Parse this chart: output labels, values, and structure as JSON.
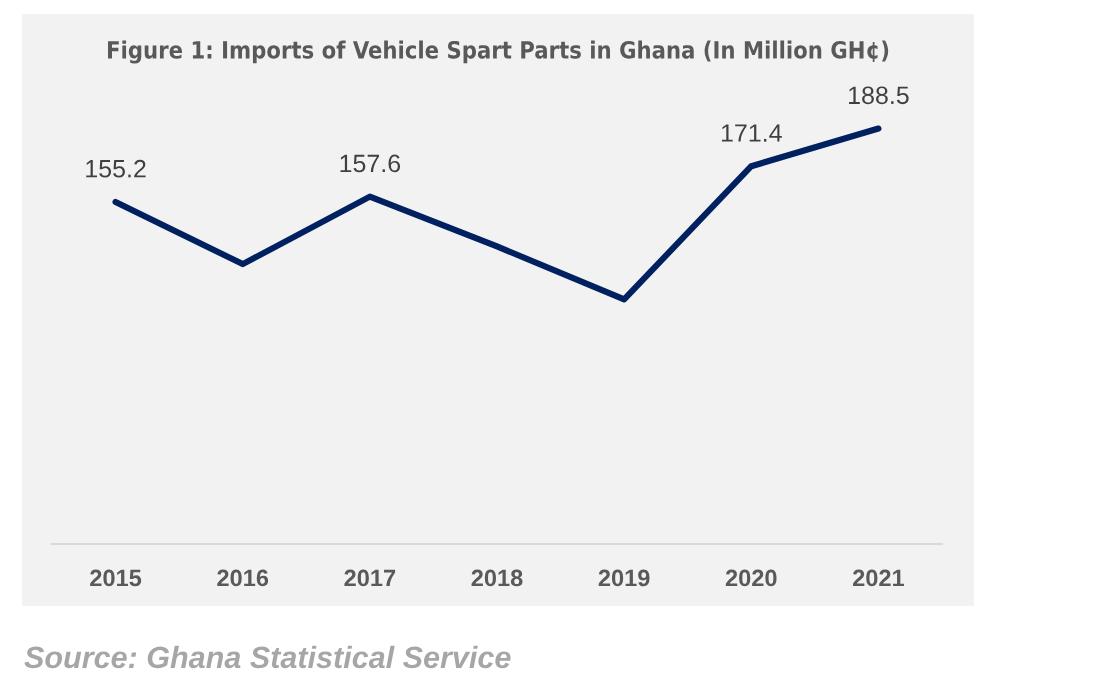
{
  "chart_data": {
    "type": "line",
    "title": "Figure 1: Imports of Vehicle Spart Parts in Ghana (In Million GH¢)",
    "categories": [
      "2015",
      "2016",
      "2017",
      "2018",
      "2019",
      "2020",
      "2021"
    ],
    "series": [
      {
        "color": "#002060",
        "values": [
          155.2,
          127,
          157.6,
          135,
          111,
          171.4,
          188.5
        ],
        "value_labels": [
          "155.2",
          null,
          "157.6",
          null,
          null,
          "171.4",
          "188.5"
        ]
      }
    ],
    "tick_labels": "x",
    "grid": false,
    "marker": "none",
    "line_style": "solid",
    "annotations": [
      "Source: Ghana Statistical Service"
    ]
  }
}
